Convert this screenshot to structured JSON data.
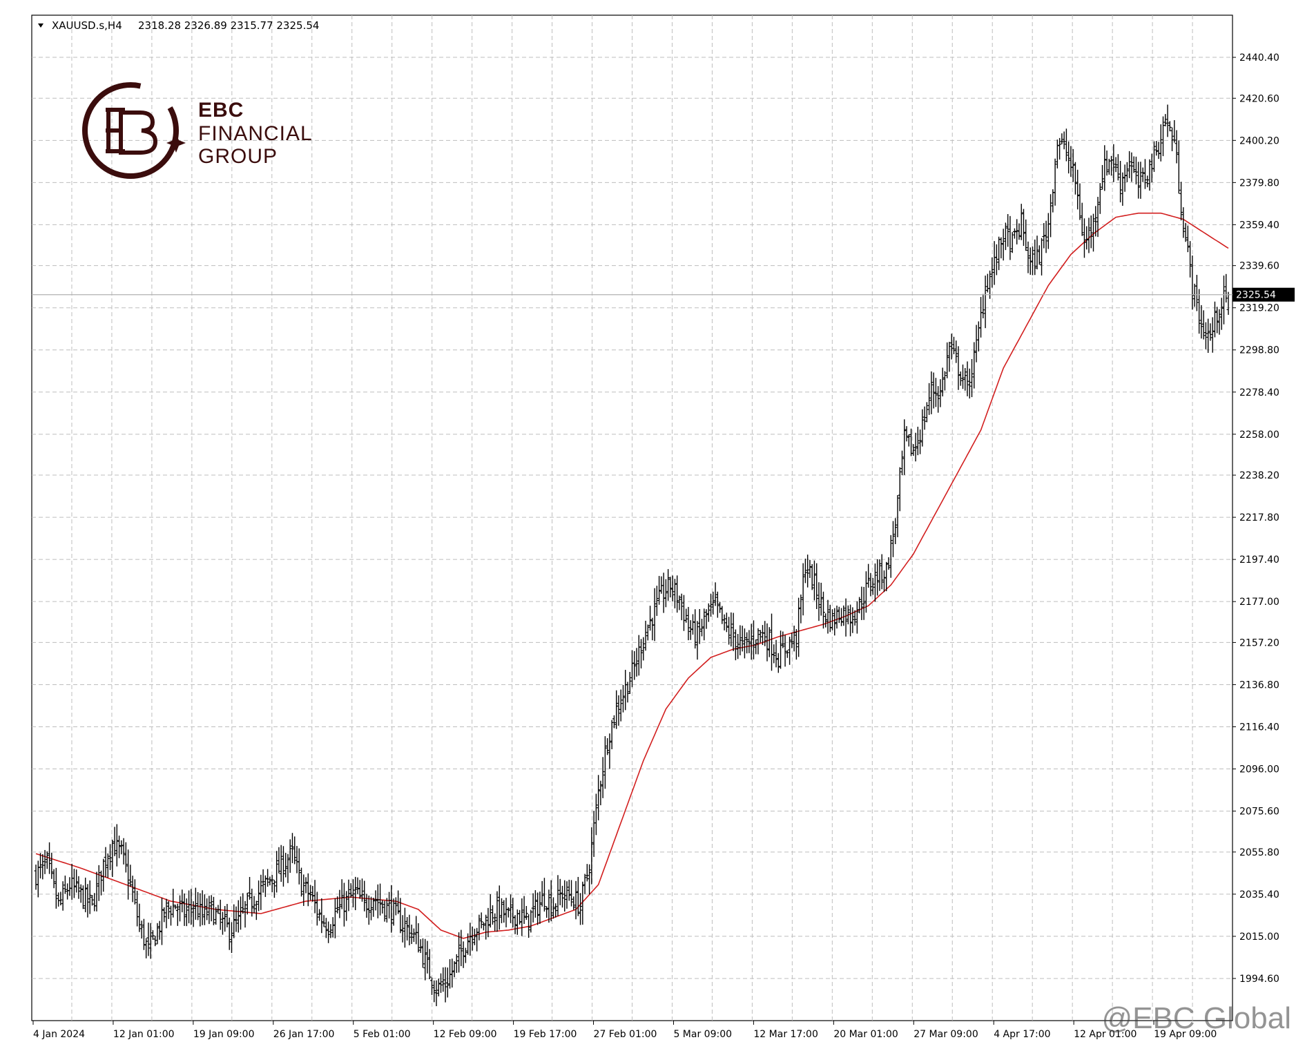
{
  "header": {
    "symbol": "XAUUSD.s,H4",
    "ohlc": "2318.28 2326.89 2315.77 2325.54"
  },
  "price_tag": "2325.54",
  "logo": {
    "line1": "EBC",
    "line2": "FINANCIAL",
    "line3": "GROUP"
  },
  "watermark": "@EBC Global",
  "colors": {
    "ma_line": "#d21e1e",
    "bars": "#000000",
    "grid": "#bdbdbd",
    "background": "#ffffff"
  },
  "chart_data": {
    "type": "ohlc-bar",
    "symbol": "XAUUSD.s",
    "timeframe": "H4",
    "y_ticks": [
      "2440.40",
      "2420.60",
      "2400.20",
      "2379.80",
      "2359.40",
      "2339.60",
      "2319.20",
      "2298.80",
      "2278.40",
      "2258.00",
      "2238.20",
      "2217.80",
      "2197.40",
      "2177.00",
      "2157.20",
      "2136.80",
      "2116.40",
      "2096.00",
      "2075.60",
      "2055.80",
      "2035.40",
      "2015.00",
      "1994.60"
    ],
    "x_ticks": [
      "4 Jan 2024",
      "12 Jan 01:00",
      "19 Jan 09:00",
      "26 Jan 17:00",
      "5 Feb 01:00",
      "12 Feb 09:00",
      "19 Feb 17:00",
      "27 Feb 01:00",
      "5 Mar 09:00",
      "12 Mar 17:00",
      "20 Mar 01:00",
      "27 Mar 09:00",
      "4 Apr 17:00",
      "12 Apr 01:00",
      "19 Apr 09:00"
    ],
    "ylim": [
      1974.2,
      2460.8
    ],
    "current_price": 2325.54,
    "last_bar": {
      "open": 2318.28,
      "high": 2326.89,
      "low": 2315.77,
      "close": 2325.54
    },
    "close_path": [
      [
        0,
        2045
      ],
      [
        5,
        2050
      ],
      [
        10,
        2030
      ],
      [
        15,
        2040
      ],
      [
        20,
        2035
      ],
      [
        25,
        2030
      ],
      [
        30,
        2050
      ],
      [
        34,
        2060
      ],
      [
        38,
        2055
      ],
      [
        42,
        2040
      ],
      [
        46,
        2020
      ],
      [
        50,
        2008
      ],
      [
        54,
        2018
      ],
      [
        58,
        2028
      ],
      [
        62,
        2030
      ],
      [
        66,
        2026
      ],
      [
        70,
        2030
      ],
      [
        74,
        2025
      ],
      [
        78,
        2028
      ],
      [
        82,
        2022
      ],
      [
        86,
        2018
      ],
      [
        90,
        2022
      ],
      [
        94,
        2030
      ],
      [
        98,
        2035
      ],
      [
        102,
        2040
      ],
      [
        106,
        2045
      ],
      [
        110,
        2050
      ],
      [
        114,
        2055
      ],
      [
        118,
        2040
      ],
      [
        122,
        2035
      ],
      [
        126,
        2025
      ],
      [
        130,
        2020
      ],
      [
        134,
        2028
      ],
      [
        138,
        2032
      ],
      [
        142,
        2036
      ],
      [
        146,
        2030
      ],
      [
        150,
        2034
      ],
      [
        154,
        2030
      ],
      [
        158,
        2028
      ],
      [
        162,
        2022
      ],
      [
        166,
        2018
      ],
      [
        170,
        2012
      ],
      [
        174,
        2000
      ],
      [
        178,
        1990
      ],
      [
        182,
        1992
      ],
      [
        186,
        2000
      ],
      [
        190,
        2010
      ],
      [
        194,
        2018
      ],
      [
        198,
        2020
      ],
      [
        202,
        2026
      ],
      [
        206,
        2028
      ],
      [
        210,
        2024
      ],
      [
        214,
        2026
      ],
      [
        218,
        2022
      ],
      [
        222,
        2028
      ],
      [
        226,
        2034
      ],
      [
        230,
        2030
      ],
      [
        234,
        2036
      ],
      [
        238,
        2034
      ],
      [
        242,
        2030
      ],
      [
        246,
        2050
      ],
      [
        250,
        2085
      ],
      [
        254,
        2110
      ],
      [
        258,
        2125
      ],
      [
        262,
        2135
      ],
      [
        266,
        2145
      ],
      [
        270,
        2160
      ],
      [
        274,
        2170
      ],
      [
        278,
        2180
      ],
      [
        282,
        2185
      ],
      [
        286,
        2178
      ],
      [
        290,
        2165
      ],
      [
        294,
        2160
      ],
      [
        298,
        2170
      ],
      [
        302,
        2175
      ],
      [
        306,
        2165
      ],
      [
        310,
        2160
      ],
      [
        314,
        2155
      ],
      [
        318,
        2158
      ],
      [
        322,
        2162
      ],
      [
        326,
        2158
      ],
      [
        330,
        2150
      ],
      [
        334,
        2156
      ],
      [
        338,
        2160
      ],
      [
        342,
        2195
      ],
      [
        346,
        2185
      ],
      [
        350,
        2172
      ],
      [
        354,
        2168
      ],
      [
        358,
        2172
      ],
      [
        362,
        2170
      ],
      [
        366,
        2175
      ],
      [
        370,
        2185
      ],
      [
        374,
        2190
      ],
      [
        378,
        2192
      ],
      [
        382,
        2215
      ],
      [
        386,
        2255
      ],
      [
        390,
        2250
      ],
      [
        394,
        2262
      ],
      [
        398,
        2280
      ],
      [
        402,
        2278
      ],
      [
        406,
        2300
      ],
      [
        410,
        2290
      ],
      [
        414,
        2280
      ],
      [
        418,
        2300
      ],
      [
        422,
        2330
      ],
      [
        426,
        2340
      ],
      [
        430,
        2355
      ],
      [
        434,
        2350
      ],
      [
        438,
        2360
      ],
      [
        442,
        2340
      ],
      [
        446,
        2345
      ],
      [
        450,
        2360
      ],
      [
        454,
        2400
      ],
      [
        458,
        2395
      ],
      [
        462,
        2380
      ],
      [
        466,
        2350
      ],
      [
        470,
        2360
      ],
      [
        474,
        2385
      ],
      [
        478,
        2392
      ],
      [
        482,
        2380
      ],
      [
        486,
        2390
      ],
      [
        490,
        2378
      ],
      [
        494,
        2385
      ],
      [
        498,
        2395
      ],
      [
        502,
        2410
      ],
      [
        506,
        2400
      ],
      [
        510,
        2360
      ],
      [
        514,
        2330
      ],
      [
        518,
        2310
      ],
      [
        522,
        2305
      ],
      [
        526,
        2320
      ],
      [
        530,
        2325.54
      ]
    ],
    "ma_path": [
      [
        0,
        2055
      ],
      [
        20,
        2048
      ],
      [
        40,
        2040
      ],
      [
        60,
        2032
      ],
      [
        80,
        2028
      ],
      [
        100,
        2026
      ],
      [
        120,
        2032
      ],
      [
        140,
        2034
      ],
      [
        160,
        2032
      ],
      [
        170,
        2028
      ],
      [
        180,
        2018
      ],
      [
        190,
        2014
      ],
      [
        200,
        2017
      ],
      [
        210,
        2018
      ],
      [
        220,
        2020
      ],
      [
        230,
        2024
      ],
      [
        240,
        2028
      ],
      [
        250,
        2040
      ],
      [
        260,
        2070
      ],
      [
        270,
        2100
      ],
      [
        280,
        2125
      ],
      [
        290,
        2140
      ],
      [
        300,
        2150
      ],
      [
        310,
        2154
      ],
      [
        320,
        2156
      ],
      [
        330,
        2160
      ],
      [
        340,
        2163
      ],
      [
        350,
        2166
      ],
      [
        360,
        2170
      ],
      [
        370,
        2175
      ],
      [
        380,
        2185
      ],
      [
        390,
        2200
      ],
      [
        400,
        2220
      ],
      [
        410,
        2240
      ],
      [
        420,
        2260
      ],
      [
        430,
        2290
      ],
      [
        440,
        2310
      ],
      [
        450,
        2330
      ],
      [
        460,
        2345
      ],
      [
        470,
        2355
      ],
      [
        480,
        2363
      ],
      [
        490,
        2365
      ],
      [
        500,
        2365
      ],
      [
        510,
        2362
      ],
      [
        520,
        2355
      ],
      [
        530,
        2348
      ]
    ]
  }
}
